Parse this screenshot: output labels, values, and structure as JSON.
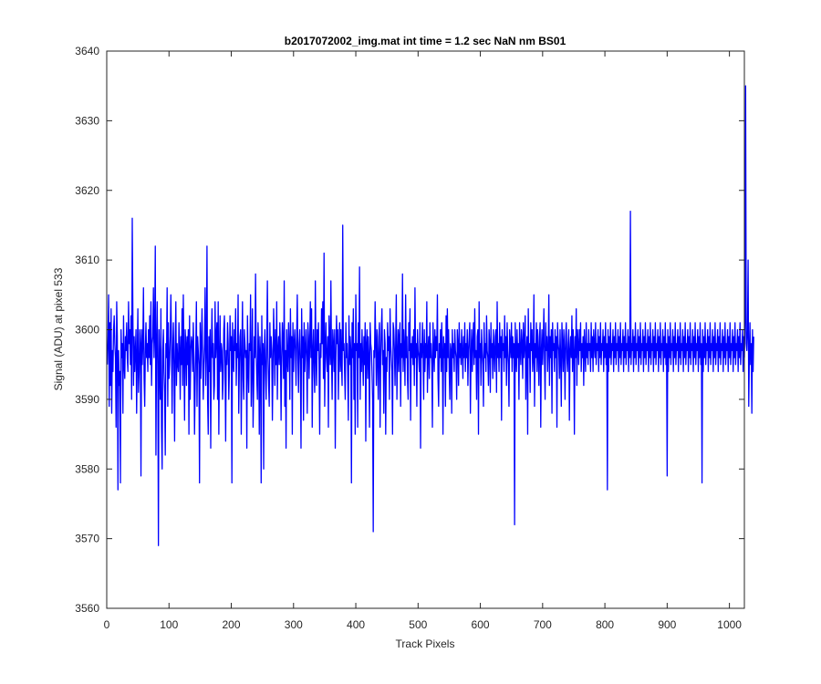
{
  "chart_data": {
    "type": "line",
    "title": "b2017072002_img.mat int time = 1.2 sec  NaN nm BS01",
    "xlabel": "Track Pixels",
    "ylabel": "Signal (ADU) at pixel 533",
    "xlim": [
      0,
      1024
    ],
    "ylim": [
      3560,
      3640
    ],
    "xticks": [
      0,
      100,
      200,
      300,
      400,
      500,
      600,
      700,
      800,
      900,
      1000
    ],
    "yticks": [
      3560,
      3570,
      3580,
      3590,
      3600,
      3610,
      3620,
      3630,
      3640
    ],
    "grid": false,
    "series": [
      {
        "color": "#0000ff",
        "x_start": 1,
        "x_step": 1,
        "values": [
          3595,
          3599,
          3605,
          3589,
          3601,
          3592,
          3603,
          3588,
          3597,
          3594,
          3600,
          3602,
          3598,
          3596,
          3586,
          3604,
          3599,
          3577,
          3597,
          3592,
          3594,
          3578,
          3600,
          3596,
          3598,
          3588,
          3602,
          3595,
          3593,
          3599,
          3597,
          3601,
          3596,
          3594,
          3604,
          3598,
          3600,
          3595,
          3602,
          3590,
          3616,
          3602,
          3592,
          3599,
          3594,
          3597,
          3600,
          3588,
          3596,
          3603,
          3591,
          3594,
          3600,
          3598,
          3579,
          3600,
          3595,
          3598,
          3606,
          3593,
          3589,
          3597,
          3601,
          3596,
          3598,
          3594,
          3600,
          3596,
          3602,
          3595,
          3604,
          3592,
          3598,
          3599,
          3606,
          3596,
          3600,
          3612,
          3582,
          3597,
          3604,
          3595,
          3569,
          3600,
          3595,
          3590,
          3603,
          3586,
          3580,
          3597,
          3600,
          3594,
          3591,
          3582,
          3598,
          3596,
          3606,
          3589,
          3601,
          3593,
          3595,
          3599,
          3605,
          3598,
          3588,
          3597,
          3601,
          3595,
          3584,
          3598,
          3604,
          3592,
          3598,
          3595,
          3594,
          3601,
          3597,
          3590,
          3599,
          3595,
          3603,
          3592,
          3605,
          3596,
          3587,
          3600,
          3598,
          3592,
          3599,
          3595,
          3600,
          3585,
          3602,
          3590,
          3597,
          3599,
          3598,
          3594,
          3601,
          3596,
          3585,
          3592,
          3597,
          3604,
          3589,
          3599,
          3597,
          3595,
          3578,
          3601,
          3593,
          3598,
          3603,
          3596,
          3590,
          3595,
          3598,
          3606,
          3592,
          3597,
          3612,
          3590,
          3585,
          3599,
          3594,
          3600,
          3583,
          3597,
          3603,
          3596,
          3598,
          3590,
          3592,
          3604,
          3596,
          3599,
          3601,
          3590,
          3604,
          3585,
          3596,
          3602,
          3594,
          3598,
          3597,
          3590,
          3593,
          3600,
          3602,
          3595,
          3584,
          3597,
          3595,
          3601,
          3598,
          3590,
          3594,
          3602,
          3597,
          3599,
          3578,
          3601,
          3596,
          3594,
          3600,
          3597,
          3603,
          3592,
          3598,
          3596,
          3605,
          3588,
          3595,
          3599,
          3600,
          3585,
          3596,
          3604,
          3593,
          3590,
          3600,
          3598,
          3596,
          3597,
          3583,
          3602,
          3595,
          3591,
          3598,
          3597,
          3605,
          3589,
          3595,
          3603,
          3586,
          3592,
          3599,
          3596,
          3608,
          3597,
          3593,
          3590,
          3601,
          3597,
          3585,
          3599,
          3596,
          3578,
          3602,
          3595,
          3598,
          3580,
          3597,
          3600,
          3594,
          3590,
          3598,
          3607,
          3596,
          3592,
          3589,
          3601,
          3596,
          3599,
          3597,
          3587,
          3595,
          3603,
          3598,
          3592,
          3600,
          3595,
          3604,
          3590,
          3597,
          3599,
          3595,
          3601,
          3597,
          3587,
          3596,
          3601,
          3598,
          3593,
          3607,
          3589,
          3597,
          3583,
          3600,
          3596,
          3594,
          3601,
          3598,
          3590,
          3603,
          3596,
          3599,
          3585,
          3601,
          3594,
          3598,
          3600,
          3597,
          3592,
          3599,
          3605,
          3596,
          3591,
          3598,
          3600,
          3595,
          3583,
          3603,
          3596,
          3599,
          3587,
          3601,
          3594,
          3597,
          3600,
          3596,
          3588,
          3601,
          3599,
          3593,
          3598,
          3604,
          3596,
          3603,
          3586,
          3597,
          3600,
          3594,
          3591,
          3607,
          3596,
          3592,
          3600,
          3597,
          3601,
          3595,
          3585,
          3598,
          3596,
          3603,
          3598,
          3604,
          3593,
          3611,
          3589,
          3597,
          3601,
          3596,
          3594,
          3599,
          3586,
          3602,
          3598,
          3595,
          3607,
          3596,
          3590,
          3600,
          3598,
          3594,
          3600,
          3583,
          3596,
          3602,
          3598,
          3600,
          3590,
          3597,
          3601,
          3594,
          3600,
          3595,
          3592,
          3615,
          3597,
          3598,
          3594,
          3590,
          3601,
          3596,
          3598,
          3594,
          3587,
          3602,
          3595,
          3599,
          3597,
          3578,
          3601,
          3596,
          3603,
          3590,
          3598,
          3585,
          3605,
          3597,
          3598,
          3586,
          3601,
          3596,
          3609,
          3590,
          3598,
          3594,
          3600,
          3596,
          3592,
          3599,
          3595,
          3601,
          3584,
          3598,
          3600,
          3593,
          3599,
          3596,
          3586,
          3601,
          3598,
          3597,
          3594,
          3590,
          3571,
          3597,
          3596,
          3604,
          3598,
          3592,
          3600,
          3596,
          3590,
          3599,
          3601,
          3586,
          3596,
          3600,
          3603,
          3595,
          3597,
          3588,
          3600,
          3598,
          3585,
          3596,
          3594,
          3601,
          3597,
          3599,
          3590,
          3603,
          3598,
          3596,
          3594,
          3585,
          3601,
          3600,
          3597,
          3592,
          3598,
          3605,
          3590,
          3596,
          3600,
          3594,
          3599,
          3601,
          3589,
          3598,
          3596,
          3608,
          3594,
          3600,
          3597,
          3592,
          3605,
          3596,
          3599,
          3593,
          3590,
          3601,
          3597,
          3603,
          3587,
          3598,
          3596,
          3599,
          3595,
          3600,
          3592,
          3606,
          3596,
          3598,
          3589,
          3600,
          3597,
          3596,
          3594,
          3601,
          3583,
          3598,
          3596,
          3601,
          3597,
          3590,
          3600,
          3594,
          3598,
          3596,
          3604,
          3591,
          3597,
          3599,
          3593,
          3601,
          3596,
          3598,
          3595,
          3586,
          3601,
          3597,
          3594,
          3600,
          3596,
          3599,
          3597,
          3605,
          3593,
          3589,
          3598,
          3596,
          3600,
          3594,
          3601,
          3597,
          3585,
          3599,
          3596,
          3598,
          3589,
          3602,
          3594,
          3603,
          3596,
          3600,
          3594,
          3590,
          3598,
          3597,
          3588,
          3600,
          3596,
          3598,
          3594,
          3600,
          3597,
          3596,
          3590,
          3600,
          3598,
          3592,
          3601,
          3596,
          3598,
          3595,
          3600,
          3597,
          3593,
          3599,
          3596,
          3601,
          3594,
          3598,
          3596,
          3600,
          3592,
          3597,
          3599,
          3601,
          3588,
          3596,
          3600,
          3594,
          3598,
          3601,
          3595,
          3603,
          3596,
          3597,
          3590,
          3599,
          3600,
          3585,
          3604,
          3596,
          3598,
          3592,
          3600,
          3597,
          3595,
          3589,
          3601,
          3596,
          3598,
          3594,
          3602,
          3597,
          3596,
          3592,
          3600,
          3598,
          3591,
          3601,
          3596,
          3598,
          3593,
          3600,
          3597,
          3594,
          3599,
          3600,
          3591,
          3604,
          3596,
          3598,
          3594,
          3601,
          3596,
          3599,
          3587,
          3600,
          3597,
          3598,
          3594,
          3602,
          3596,
          3599,
          3592,
          3601,
          3597,
          3595,
          3589,
          3600,
          3598,
          3596,
          3601,
          3594,
          3599,
          3596,
          3598,
          3572,
          3601,
          3597,
          3594,
          3600,
          3596,
          3598,
          3590,
          3601,
          3597,
          3595,
          3600,
          3598,
          3593,
          3601,
          3596,
          3598,
          3602,
          3590,
          3597,
          3599,
          3585,
          3603,
          3596,
          3598,
          3591,
          3601,
          3597,
          3600,
          3594,
          3596,
          3605,
          3589,
          3598,
          3596,
          3601,
          3594,
          3600,
          3597,
          3592,
          3599,
          3601,
          3586,
          3597,
          3600,
          3595,
          3598,
          3603,
          3596,
          3590,
          3601,
          3597,
          3599,
          3594,
          3597,
          3605,
          3592,
          3599,
          3596,
          3600,
          3588,
          3601,
          3597,
          3598,
          3594,
          3600,
          3596,
          3599,
          3586,
          3601,
          3598,
          3597,
          3593,
          3600,
          3596,
          3589,
          3601,
          3598,
          3594,
          3600,
          3597,
          3590,
          3599,
          3601,
          3596,
          3594,
          3598,
          3600,
          3587,
          3597,
          3599,
          3596,
          3602,
          3594,
          3600,
          3597,
          3585,
          3599,
          3596,
          3603,
          3592,
          3600,
          3598,
          3595,
          3600,
          3597,
          3601,
          3594,
          3598,
          3596,
          3599,
          3592,
          3600,
          3597,
          3594,
          3601,
          3596,
          3598,
          3595,
          3600,
          3597,
          3598,
          3594,
          3601,
          3596,
          3599,
          3594,
          3600,
          3598,
          3596,
          3601,
          3595,
          3598,
          3597,
          3600,
          3594,
          3599,
          3596,
          3601,
          3595,
          3598,
          3597,
          3600,
          3594,
          3599,
          3596,
          3601,
          3595,
          3598,
          3577,
          3600,
          3594,
          3599,
          3596,
          3601,
          3595,
          3598,
          3597,
          3600,
          3594,
          3599,
          3596,
          3601,
          3595,
          3598,
          3597,
          3600,
          3594,
          3599,
          3596,
          3601,
          3595,
          3598,
          3597,
          3600,
          3594,
          3599,
          3596,
          3601,
          3595,
          3598,
          3597,
          3600,
          3594,
          3599,
          3596,
          3617,
          3595,
          3598,
          3597,
          3600,
          3594,
          3599,
          3596,
          3601,
          3595,
          3598,
          3597,
          3600,
          3594,
          3599,
          3596,
          3601,
          3595,
          3598,
          3597,
          3600,
          3594,
          3599,
          3596,
          3601,
          3595,
          3598,
          3597,
          3600,
          3594,
          3599,
          3596,
          3601,
          3595,
          3598,
          3597,
          3600,
          3594,
          3599,
          3596,
          3601,
          3595,
          3598,
          3597,
          3600,
          3594,
          3599,
          3596,
          3601,
          3595,
          3598,
          3597,
          3600,
          3594,
          3599,
          3596,
          3601,
          3595,
          3598,
          3579,
          3600,
          3594,
          3599,
          3596,
          3601,
          3595,
          3598,
          3597,
          3600,
          3594,
          3599,
          3596,
          3601,
          3595,
          3598,
          3597,
          3600,
          3594,
          3599,
          3596,
          3601,
          3595,
          3598,
          3597,
          3600,
          3594,
          3599,
          3596,
          3601,
          3595,
          3598,
          3597,
          3600,
          3594,
          3599,
          3596,
          3601,
          3595,
          3598,
          3597,
          3600,
          3594,
          3599,
          3596,
          3601,
          3595,
          3598,
          3597,
          3600,
          3594,
          3599,
          3596,
          3601,
          3595,
          3598,
          3578,
          3600,
          3594,
          3599,
          3596,
          3601,
          3595,
          3598,
          3597,
          3600,
          3594,
          3599,
          3596,
          3601,
          3595,
          3598,
          3597,
          3600,
          3594,
          3599,
          3596,
          3601,
          3595,
          3598,
          3597,
          3600,
          3594,
          3599,
          3596,
          3601,
          3595,
          3598,
          3597,
          3600,
          3594,
          3599,
          3596,
          3601,
          3595,
          3598,
          3597,
          3600,
          3594,
          3599,
          3596,
          3601,
          3595,
          3598,
          3597,
          3600,
          3594,
          3599,
          3596,
          3601,
          3595,
          3598,
          3597,
          3600,
          3594,
          3599,
          3596,
          3601,
          3595,
          3598,
          3597,
          3600,
          3594,
          3599,
          3596,
          3601,
          3635,
          3598,
          3597,
          3600,
          3610,
          3589,
          3596,
          3601,
          3595,
          3598,
          3588,
          3600,
          3594,
          3599
        ]
      }
    ]
  }
}
